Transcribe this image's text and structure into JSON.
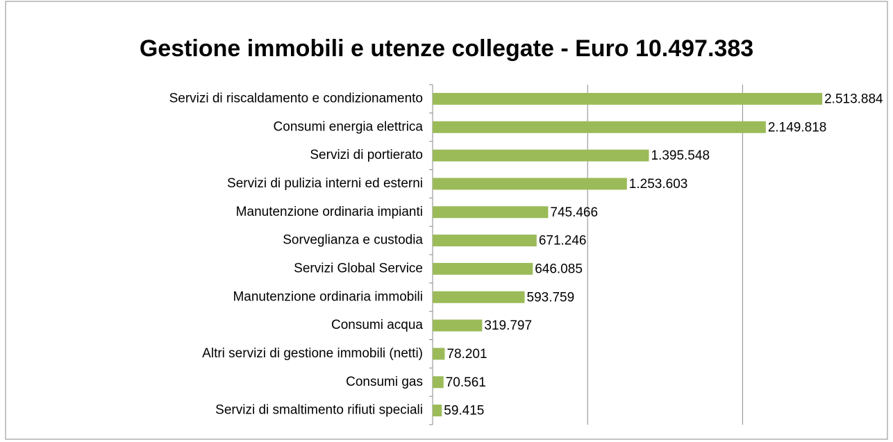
{
  "chart_data": {
    "type": "hbar",
    "title": "Gestione immobili e utenze collegate - Euro 10.497.383",
    "categories": [
      "Servizi di riscaldamento e condizionamento",
      "Consumi energia elettrica",
      "Servizi di portierato",
      "Servizi di pulizia interni ed esterni",
      "Manutenzione ordinaria impianti",
      "Sorveglianza e custodia",
      "Servizi Global Service",
      "Manutenzione ordinaria immobili",
      "Consumi acqua",
      "Altri servizi di gestione immobili (netti)",
      "Consumi gas",
      "Servizi di smaltimento rifiuti speciali"
    ],
    "values": [
      2513884,
      2149818,
      1395548,
      1253603,
      745466,
      671246,
      646085,
      593759,
      319797,
      78201,
      70561,
      59415
    ],
    "value_labels": [
      "2.513.884",
      "2.149.818",
      "1.395.548",
      "1.253.603",
      "745.466",
      "671.246",
      "646.085",
      "593.759",
      "319.797",
      "78.201",
      "70.561",
      "59.415"
    ],
    "color": "#9bbb59",
    "xlim": [
      0,
      2500000
    ],
    "xticks": [
      1000000,
      2000000
    ],
    "grid": true
  }
}
